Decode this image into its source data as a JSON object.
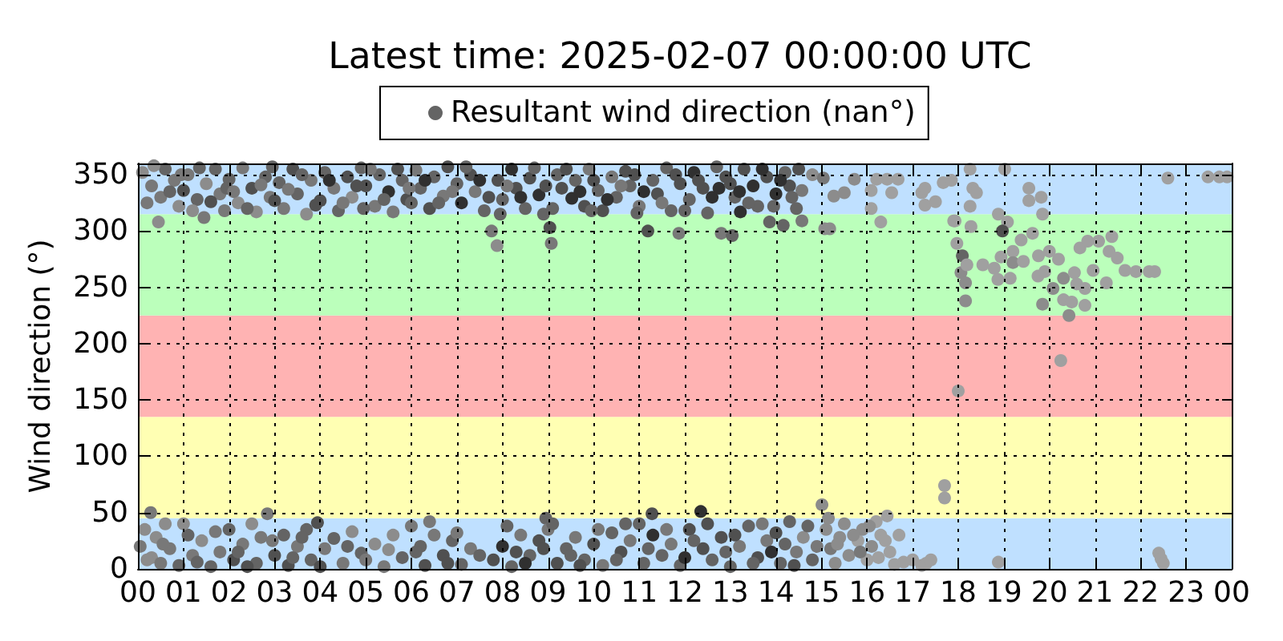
{
  "chart_data": {
    "type": "scatter",
    "title": "Latest time: 2025-02-07 00:00:00 UTC",
    "ylabel": "Wind direction (°)",
    "xlim": [
      0,
      24
    ],
    "xticks": [
      {
        "value": 0,
        "label": "00"
      },
      {
        "value": 1,
        "label": "01"
      },
      {
        "value": 2,
        "label": "02"
      },
      {
        "value": 3,
        "label": "03"
      },
      {
        "value": 4,
        "label": "04"
      },
      {
        "value": 5,
        "label": "05"
      },
      {
        "value": 6,
        "label": "06"
      },
      {
        "value": 7,
        "label": "07"
      },
      {
        "value": 8,
        "label": "08"
      },
      {
        "value": 9,
        "label": "09"
      },
      {
        "value": 10,
        "label": "10"
      },
      {
        "value": 11,
        "label": "11"
      },
      {
        "value": 12,
        "label": "12"
      },
      {
        "value": 13,
        "label": "13"
      },
      {
        "value": 14,
        "label": "14"
      },
      {
        "value": 15,
        "label": "15"
      },
      {
        "value": 16,
        "label": "16"
      },
      {
        "value": 17,
        "label": "17"
      },
      {
        "value": 18,
        "label": "18"
      },
      {
        "value": 19,
        "label": "19"
      },
      {
        "value": 20,
        "label": "20"
      },
      {
        "value": 21,
        "label": "21"
      },
      {
        "value": 22,
        "label": "22"
      },
      {
        "value": 23,
        "label": "23"
      },
      {
        "value": 24,
        "label": "00"
      }
    ],
    "ylim": [
      0,
      360
    ],
    "yticks": [
      0,
      50,
      100,
      150,
      200,
      250,
      300,
      350
    ],
    "grid": true,
    "legend": "top",
    "marker": "circle",
    "bands": [
      {
        "axis": "y",
        "from": 0,
        "to": 45,
        "color": "#bfe0ff"
      },
      {
        "axis": "y",
        "from": 45,
        "to": 135,
        "color": "#ffffb3"
      },
      {
        "axis": "y",
        "from": 135,
        "to": 225,
        "color": "#ffb3b3"
      },
      {
        "axis": "y",
        "from": 225,
        "to": 315,
        "color": "#bbffbb"
      },
      {
        "axis": "y",
        "from": 315,
        "to": 360,
        "color": "#bfe0ff"
      }
    ],
    "series": [
      {
        "name": "Resultant wind direction (nan°)",
        "color": "#646464",
        "x": [
          0.1,
          0.3,
          0.45,
          0.5,
          0.6,
          0.8,
          0.9,
          1.0,
          1.1,
          1.3,
          1.45,
          1.5,
          1.7,
          1.8,
          1.9,
          2.0,
          2.2,
          2.3,
          2.5,
          2.6,
          2.8,
          2.9,
          3.1,
          3.2,
          3.4,
          3.5,
          3.7,
          3.8,
          4.0,
          4.1,
          4.3,
          4.4,
          4.6,
          4.7,
          4.9,
          5.0,
          5.2,
          5.3,
          5.5,
          5.6,
          5.8,
          5.9,
          6.1,
          6.2,
          6.4,
          6.5,
          6.7,
          6.8,
          7.0,
          7.1,
          7.3,
          7.4,
          7.6,
          7.76,
          7.88,
          7.9,
          8.0,
          8.2,
          8.3,
          8.5,
          8.6,
          8.8,
          8.9,
          9.04,
          9.07,
          9.2,
          9.3,
          9.52,
          9.6,
          9.8,
          9.9,
          10.1,
          10.2,
          10.4,
          10.5,
          10.7,
          10.8,
          11.0,
          11.19,
          11.3,
          11.4,
          11.6,
          11.7,
          11.87,
          11.9,
          12.1,
          12.2,
          12.4,
          12.5,
          12.75,
          12.8,
          12.9,
          13.04,
          13.1,
          13.22,
          13.3,
          13.5,
          13.6,
          13.8,
          13.86,
          14.0,
          14.16,
          14.2,
          14.3,
          14.45,
          14.57,
          14.57,
          14.8,
          15.04,
          15.07,
          15.18,
          15.27,
          15.5,
          15.72,
          16.09,
          16.09,
          16.21,
          16.3,
          16.44,
          16.54,
          16.68,
          17.2,
          17.27,
          17.27,
          17.5,
          17.67,
          17.85,
          17.9,
          18.26,
          18.32,
          18.4,
          18.26,
          19.02,
          19.55,
          19.55,
          19.82,
          19.85,
          18.88,
          19.08,
          22.6,
          23.48,
          23.73,
          23.9,
          17.93,
          18.28,
          18.97,
          19.63,
          19.38,
          17.97,
          18.09,
          18.06,
          18.16,
          18.16,
          18.19,
          18.54,
          18.79,
          18.87,
          18.94,
          19.2,
          19.14,
          19.2,
          19.43,
          19.76,
          19.75,
          20.0,
          19.9,
          20.2,
          20.08,
          19.85,
          20.31,
          20.31,
          20.43,
          20.49,
          20.67,
          20.84,
          20.55,
          20.6,
          20.78,
          20.78,
          20.96,
          21.08,
          21.37,
          21.31,
          21.49,
          21.25,
          21.66,
          21.9,
          22.19,
          22.31,
          0.05,
          0.15,
          0.28,
          0.3,
          0.4,
          0.5,
          0.6,
          0.7,
          0.9,
          1.1,
          1.2,
          1.4,
          1.6,
          1.8,
          2.0,
          2.1,
          2.3,
          2.5,
          2.6,
          2.7,
          2.84,
          3.0,
          3.2,
          3.3,
          3.5,
          3.7,
          3.8,
          3.94,
          4.1,
          4.3,
          4.5,
          4.7,
          4.9,
          5.2,
          5.4,
          5.6,
          5.8,
          6.0,
          6.2,
          6.3,
          6.5,
          6.7,
          6.9,
          7.1,
          7.3,
          7.8,
          8.0,
          8.2,
          8.4,
          8.6,
          8.8,
          8.95,
          9.0,
          9.2,
          9.4,
          9.6,
          9.8,
          10.0,
          10.2,
          10.4,
          10.6,
          10.8,
          11.0,
          11.1,
          11.28,
          11.3,
          11.5,
          11.7,
          11.9,
          12.1,
          12.35,
          12.4,
          12.6,
          12.8,
          13.0,
          13.2,
          13.4,
          13.6,
          13.8,
          14.0,
          14.1,
          14.3,
          14.45,
          14.6,
          14.8,
          15.01,
          15.1,
          15.2,
          15.3,
          15.4,
          15.5,
          15.6,
          15.8,
          15.9,
          16.0,
          16.1,
          16.2,
          16.3,
          16.44,
          16.5,
          16.6,
          16.8,
          17.0,
          17.2,
          17.3,
          17.7,
          17.7,
          18.0,
          18.88,
          20.25,
          22.4,
          22.45,
          22.5,
          0.2,
          0.35,
          0.7,
          0.95,
          1.2,
          1.35,
          1.6,
          1.95,
          2.1,
          2.4,
          2.7,
          2.95,
          3.0,
          3.3,
          3.6,
          3.9,
          4.2,
          4.5,
          4.8,
          4.95,
          5.1,
          5.4,
          5.7,
          5.95,
          6.0,
          6.3,
          6.6,
          6.9,
          7.2,
          7.5,
          7.7,
          7.95,
          8.1,
          8.4,
          8.7,
          8.95,
          9.1,
          9.4,
          9.7,
          9.95,
          10.0,
          10.3,
          10.6,
          10.9,
          10.95,
          11.1,
          11.5,
          11.8,
          12.0,
          12.3,
          12.6,
          12.7,
          13.0,
          13.2,
          13.4,
          13.7,
          13.95,
          14.1,
          14.35,
          14.5,
          0.2,
          0.55,
          1.0,
          1.3,
          1.7,
          2.2,
          2.4,
          2.95,
          3.4,
          3.6,
          4.0,
          4.6,
          5.0,
          5.5,
          6.1,
          6.4,
          6.8,
          7.0,
          7.5,
          8.1,
          8.3,
          8.5,
          8.9,
          9.1,
          9.5,
          9.7,
          10.1,
          10.5,
          10.7,
          11.2,
          11.6,
          12.0,
          12.2,
          12.5,
          12.9,
          13.1,
          13.5,
          13.7,
          13.9,
          14.2,
          14.4,
          14.7,
          14.9,
          15.15,
          15.35,
          15.7,
          15.85,
          16.05,
          16.25,
          16.4,
          16.7,
          17.4
        ],
        "values": [
          352,
          340,
          308,
          330,
          355,
          345,
          322,
          336,
          350,
          328,
          312,
          342,
          355,
          333,
          318,
          346,
          325,
          356,
          338,
          317,
          348,
          330,
          343,
          320,
          355,
          333,
          315,
          345,
          327,
          352,
          338,
          318,
          348,
          330,
          356,
          340,
          322,
          350,
          335,
          317,
          345,
          328,
          354,
          338,
          320,
          348,
          331,
          357,
          342,
          325,
          350,
          335,
          318,
          300,
          287,
          345,
          328,
          355,
          338,
          320,
          347,
          332,
          315,
          303,
          289,
          350,
          338,
          329,
          345,
          322,
          355,
          336,
          318,
          348,
          330,
          353,
          340,
          322,
          300,
          345,
          333,
          356,
          318,
          298,
          342,
          328,
          352,
          338,
          316,
          338,
          298,
          348,
          296,
          330,
          317,
          355,
          340,
          322,
          348,
          308,
          333,
          305,
          352,
          340,
          320,
          309,
          336,
          350,
          347,
          302,
          302,
          331,
          334,
          346,
          336,
          320,
          346,
          308,
          346,
          334,
          346,
          334,
          338,
          323,
          326,
          343,
          345,
          309,
          355,
          338,
          334,
          322,
          355,
          338,
          327,
          330,
          315,
          315,
          308,
          347,
          348,
          348,
          348,
          309,
          304,
          300,
          298,
          292,
          289,
          278,
          263,
          254,
          238,
          270,
          270,
          267,
          257,
          277,
          282,
          258,
          272,
          273,
          278,
          260,
          282,
          264,
          275,
          249,
          235,
          258,
          239,
          225,
          237,
          285,
          291,
          263,
          253,
          249,
          234,
          265,
          291,
          295,
          282,
          276,
          254,
          265,
          264,
          264,
          264,
          20,
          35,
          50,
          10,
          28,
          5,
          40,
          18,
          3,
          30,
          12,
          25,
          2,
          15,
          35,
          8,
          22,
          40,
          5,
          28,
          49,
          12,
          30,
          3,
          20,
          35,
          8,
          41,
          18,
          27,
          5,
          33,
          14,
          22,
          2,
          30,
          10,
          38,
          20,
          3,
          30,
          12,
          25,
          4,
          18,
          8,
          20,
          2,
          30,
          12,
          25,
          45,
          35,
          5,
          18,
          28,
          8,
          22,
          3,
          32,
          15,
          25,
          40,
          5,
          49,
          30,
          12,
          22,
          3,
          35,
          51,
          18,
          8,
          28,
          2,
          20,
          38,
          10,
          25,
          32,
          5,
          42,
          15,
          28,
          8,
          57,
          35,
          18,
          5,
          28,
          40,
          12,
          25,
          35,
          8,
          20,
          42,
          30,
          47,
          15,
          4,
          6,
          8,
          3,
          5,
          74,
          63,
          158,
          6,
          185,
          14,
          9,
          5,
          325,
          358,
          335,
          350,
          318,
          356,
          326,
          338,
          335,
          320,
          341,
          357,
          327,
          337,
          350,
          323,
          345,
          325,
          340,
          320,
          355,
          328,
          355,
          338,
          325,
          345,
          325,
          335,
          357,
          345,
          330,
          315,
          340,
          330,
          356,
          340,
          320,
          355,
          335,
          318,
          345,
          328,
          340,
          350,
          316,
          335,
          325,
          350,
          318,
          345,
          330,
          357,
          342,
          335,
          325,
          355,
          322,
          345,
          330,
          355,
          8,
          22,
          40,
          6,
          33,
          15,
          2,
          25,
          10,
          28,
          2,
          20,
          8,
          17,
          15,
          42,
          5,
          32,
          12,
          38,
          15,
          5,
          18,
          40,
          12,
          3,
          35,
          8,
          40,
          18,
          35,
          10,
          25,
          40,
          15,
          30,
          5,
          40,
          15,
          22,
          3,
          38,
          20,
          45,
          22,
          30,
          15,
          38,
          10,
          25,
          30,
          8
        ],
        "colors": [
          "#8c8c8c",
          "#787878",
          "#8c8c8c",
          "#787878",
          "#646464",
          "#787878",
          "#8c8c8c",
          "#505050",
          "#787878",
          "#646464",
          "#787878",
          "#8c8c8c",
          "#646464",
          "#787878",
          "#787878",
          "#646464",
          "#8c8c8c",
          "#787878",
          "#505050",
          "#8c8c8c",
          "#646464",
          "#787878",
          "#646464",
          "#787878",
          "#505050",
          "#646464",
          "#8c8c8c",
          "#787878",
          "#505050",
          "#646464",
          "#787878",
          "#646464",
          "#505050",
          "#8c8c8c",
          "#646464",
          "#505050",
          "#787878",
          "#646464",
          "#303030",
          "#787878",
          "#646464",
          "#505050",
          "#787878",
          "#646464",
          "#505050",
          "#646464",
          "#787878",
          "#505050",
          "#646464",
          "#303030",
          "#505050",
          "#787878",
          "#646464",
          "#787878",
          "#8c8c8c",
          "#505050",
          "#646464",
          "#303030",
          "#505050",
          "#646464",
          "#505050",
          "#303030",
          "#646464",
          "#505050",
          "#787878",
          "#646464",
          "#505050",
          "#303030",
          "#646464",
          "#505050",
          "#787878",
          "#646464",
          "#505050",
          "#787878",
          "#646464",
          "#505050",
          "#646464",
          "#787878",
          "#505050",
          "#646464",
          "#505050",
          "#646464",
          "#646464",
          "#787878",
          "#505050",
          "#646464",
          "#303030",
          "#505050",
          "#646464",
          "#303030",
          "#787878",
          "#505050",
          "#646464",
          "#646464",
          "#303030",
          "#505050",
          "#303030",
          "#646464",
          "#505050",
          "#646464",
          "#303030",
          "#646464",
          "#646464",
          "#505050",
          "#646464",
          "#787878",
          "#787878",
          "#8c8c8c",
          "#787878",
          "#8c8c8c",
          "#8c8c8c",
          "#8c8c8c",
          "#8c8c8c",
          "#8c8c8c",
          "#a0a0a0",
          "#a0a0a0",
          "#a0a0a0",
          "#a0a0a0",
          "#a0a0a0",
          "#a0a0a0",
          "#a0a0a0",
          "#a0a0a0",
          "#a0a0a0",
          "#a0a0a0",
          "#a0a0a0",
          "#a0a0a0",
          "#a0a0a0",
          "#a0a0a0",
          "#a0a0a0",
          "#a0a0a0",
          "#a0a0a0",
          "#a0a0a0",
          "#a0a0a0",
          "#a0a0a0",
          "#a0a0a0",
          "#a0a0a0",
          "#a0a0a0",
          "#a0a0a0",
          "#a0a0a0",
          "#a0a0a0",
          "#a0a0a0",
          "#a0a0a0",
          "#a0a0a0",
          "#a0a0a0",
          "#a0a0a0",
          "#505050",
          "#a0a0a0",
          "#a0a0a0",
          "#a0a0a0",
          "#646464",
          "#8c8c8c",
          "#8c8c8c",
          "#8c8c8c",
          "#a0a0a0",
          "#a0a0a0",
          "#a0a0a0",
          "#a0a0a0",
          "#a0a0a0",
          "#a0a0a0",
          "#a0a0a0",
          "#8c8c8c",
          "#a0a0a0",
          "#a0a0a0",
          "#a0a0a0",
          "#a0a0a0",
          "#a0a0a0",
          "#a0a0a0",
          "#8c8c8c",
          "#8c8c8c",
          "#8c8c8c",
          "#a0a0a0",
          "#8c8c8c",
          "#a0a0a0",
          "#a0a0a0",
          "#a0a0a0",
          "#a0a0a0",
          "#a0a0a0",
          "#a0a0a0",
          "#a0a0a0",
          "#a0a0a0",
          "#a0a0a0",
          "#a0a0a0",
          "#a0a0a0",
          "#a0a0a0",
          "#a0a0a0",
          "#a0a0a0",
          "#a0a0a0",
          "#a0a0a0",
          "#a0a0a0",
          "#787878",
          "#8c8c8c",
          "#787878",
          "#8c8c8c",
          "#8c8c8c",
          "#787878",
          "#8c8c8c",
          "#787878",
          "#646464",
          "#646464",
          "#787878",
          "#8c8c8c",
          "#646464",
          "#787878",
          "#646464",
          "#505050",
          "#787878",
          "#8c8c8c",
          "#646464",
          "#787878",
          "#787878",
          "#505050",
          "#646464",
          "#505050",
          "#787878",
          "#646464",
          "#646464",
          "#505050",
          "#787878",
          "#646464",
          "#787878",
          "#8c8c8c",
          "#646464",
          "#8c8c8c",
          "#787878",
          "#8c8c8c",
          "#646464",
          "#787878",
          "#646464",
          "#505050",
          "#787878",
          "#505050",
          "#646464",
          "#646464",
          "#787878",
          "#505050",
          "#303030",
          "#646464",
          "#787878",
          "#646464",
          "#505050",
          "#646464",
          "#787878",
          "#505050",
          "#646464",
          "#787878",
          "#646464",
          "#505050",
          "#787878",
          "#646464",
          "#505050",
          "#787878",
          "#646464",
          "#646464",
          "#505050",
          "#303030",
          "#646464",
          "#787878",
          "#646464",
          "#505050",
          "#303030",
          "#505050",
          "#646464",
          "#505050",
          "#646464",
          "#787878",
          "#646464",
          "#505050",
          "#787878",
          "#505050",
          "#646464",
          "#646464",
          "#787878",
          "#8c8c8c",
          "#646464",
          "#8c8c8c",
          "#8c8c8c",
          "#787878",
          "#8c8c8c",
          "#8c8c8c",
          "#8c8c8c",
          "#8c8c8c",
          "#a0a0a0",
          "#8c8c8c",
          "#a0a0a0",
          "#8c8c8c",
          "#a0a0a0",
          "#a0a0a0",
          "#a0a0a0",
          "#a0a0a0",
          "#a0a0a0",
          "#a0a0a0",
          "#a0a0a0",
          "#a0a0a0",
          "#a0a0a0",
          "#a0a0a0",
          "#a0a0a0",
          "#a0a0a0",
          "#a0a0a0",
          "#a0a0a0",
          "#a0a0a0",
          "#a0a0a0",
          "#a0a0a0",
          "#787878",
          "#8c8c8c",
          "#646464",
          "#787878",
          "#8c8c8c",
          "#646464",
          "#505050",
          "#646464",
          "#787878",
          "#646464",
          "#787878",
          "#646464",
          "#505050",
          "#787878",
          "#646464",
          "#505050",
          "#303030",
          "#787878",
          "#505050",
          "#646464",
          "#787878",
          "#646464",
          "#505050",
          "#787878",
          "#646464",
          "#303030",
          "#646464",
          "#787878",
          "#646464",
          "#303030",
          "#505050",
          "#646464",
          "#787878",
          "#303030",
          "#646464",
          "#505050",
          "#646464",
          "#505050",
          "#303030",
          "#646464",
          "#505050",
          "#303030",
          "#787878",
          "#505050",
          "#646464",
          "#303030",
          "#787878",
          "#505050",
          "#646464",
          "#505050",
          "#303030",
          "#646464",
          "#505050",
          "#303030",
          "#646464",
          "#303030",
          "#646464",
          "#303030",
          "#646464",
          "#505050",
          "#8c8c8c",
          "#787878",
          "#8c8c8c",
          "#646464",
          "#787878",
          "#646464",
          "#505050",
          "#787878",
          "#646464",
          "#646464",
          "#505050",
          "#646464",
          "#787878",
          "#8c8c8c",
          "#646464",
          "#787878",
          "#505050",
          "#787878",
          "#646464",
          "#646464",
          "#505050",
          "#303030",
          "#505050",
          "#646464",
          "#646464",
          "#505050",
          "#787878",
          "#646464",
          "#646464",
          "#646464",
          "#787878",
          "#303030",
          "#646464",
          "#505050",
          "#646464",
          "#505050",
          "#646464",
          "#787878",
          "#303030",
          "#646464",
          "#505050",
          "#646464",
          "#787878",
          "#8c8c8c",
          "#8c8c8c",
          "#8c8c8c",
          "#787878",
          "#8c8c8c",
          "#a0a0a0",
          "#a0a0a0",
          "#a0a0a0",
          "#a0a0a0"
        ]
      }
    ]
  }
}
